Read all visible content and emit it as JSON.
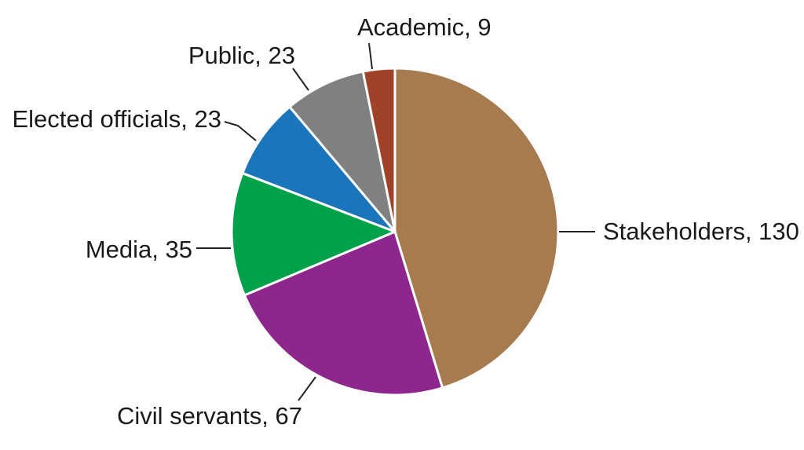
{
  "chart_data": {
    "type": "pie",
    "title": "",
    "slices": [
      {
        "label": "Stakeholders, 130",
        "name": "Stakeholders",
        "value": 130,
        "color": "#A67B4F"
      },
      {
        "label": "Civil servants, 67",
        "name": "Civil servants",
        "value": 67,
        "color": "#8E278C"
      },
      {
        "label": "Media, 35",
        "name": "Media",
        "value": 35,
        "color": "#00A14B"
      },
      {
        "label": "Elected officials, 23",
        "name": "Elected officials",
        "value": 23,
        "color": "#1B75BB"
      },
      {
        "label": "Public, 23",
        "name": "Public",
        "value": 23,
        "color": "#808080"
      },
      {
        "label": "Academic, 9",
        "name": "Academic",
        "value": 9,
        "color": "#A0412A"
      }
    ],
    "start_angle": "12 o'clock",
    "direction": "clockwise",
    "legend": "none (direct labels with leader lines)"
  }
}
